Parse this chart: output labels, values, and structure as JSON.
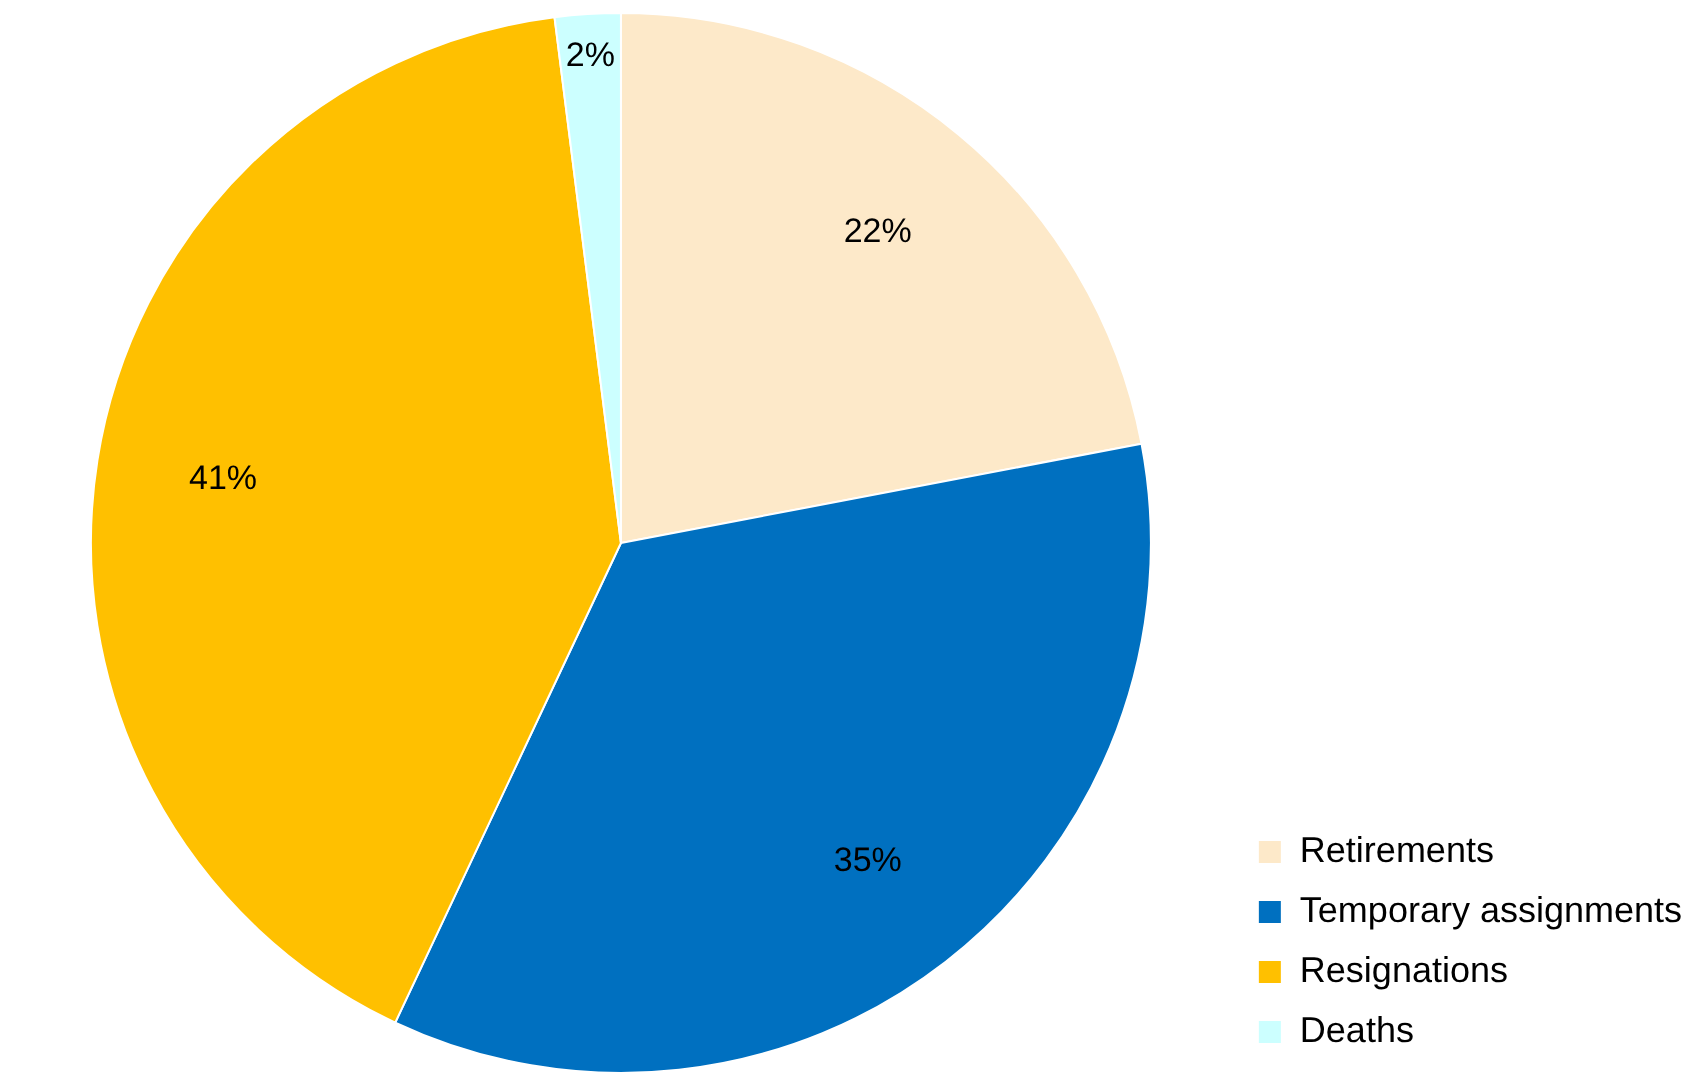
{
  "chart_data": {
    "type": "pie",
    "categories": [
      "Retirements",
      "Temporary assignments",
      "Resignations",
      "Deaths"
    ],
    "values": [
      22,
      35,
      41,
      2
    ],
    "colors": [
      "#fde9c9",
      "#0070c0",
      "#ffc000",
      "#ccffff"
    ],
    "value_labels": [
      "22%",
      "35%",
      "41%",
      "2%"
    ],
    "legend": "bottom right"
  }
}
